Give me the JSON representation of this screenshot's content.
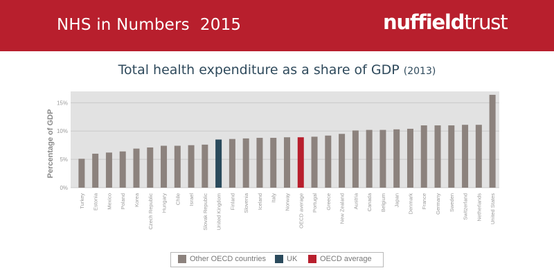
{
  "header": {
    "title": "NHS in Numbers",
    "year": "2015",
    "logo_part1": "nuffield",
    "logo_part2": "trust"
  },
  "colors": {
    "header_bg": "#b81f2d",
    "other": "#8c827d",
    "uk": "#2a4a5c",
    "oecd": "#b81f2d",
    "grid": "#c9c9c9",
    "plot_bg": "#e2e2e2"
  },
  "chart_data": {
    "type": "bar",
    "title": "Total health expenditure as a share of GDP",
    "title_year": "(2013)",
    "xlabel": "",
    "ylabel": "Percentage of GDP",
    "ylim": [
      0,
      17
    ],
    "yticks": [
      0,
      5,
      10,
      15
    ],
    "ytick_labels": [
      "0%",
      "5%",
      "10%",
      "15%"
    ],
    "categories": [
      "Turkey",
      "Estonia",
      "Mexico",
      "Poland",
      "Korea",
      "Czech Republic",
      "Hungary",
      "Chile",
      "Israel",
      "Slovak Republic",
      "United Kingdom",
      "Finland",
      "Slovenia",
      "Iceland",
      "Italy",
      "Norway",
      "OECD average",
      "Portugal",
      "Greece",
      "New Zealand",
      "Austria",
      "Canada",
      "Belgium",
      "Japan",
      "Denmark",
      "France",
      "Germany",
      "Sweden",
      "Switzerland",
      "Netherlands",
      "United States"
    ],
    "values": [
      5.1,
      6.0,
      6.2,
      6.4,
      6.9,
      7.1,
      7.4,
      7.4,
      7.5,
      7.6,
      8.5,
      8.6,
      8.7,
      8.8,
      8.8,
      8.9,
      8.9,
      9.0,
      9.2,
      9.5,
      10.1,
      10.2,
      10.2,
      10.3,
      10.4,
      11.0,
      11.0,
      11.0,
      11.1,
      11.1,
      16.4
    ],
    "groups": [
      "other",
      "other",
      "other",
      "other",
      "other",
      "other",
      "other",
      "other",
      "other",
      "other",
      "uk",
      "other",
      "other",
      "other",
      "other",
      "other",
      "oecd",
      "other",
      "other",
      "other",
      "other",
      "other",
      "other",
      "other",
      "other",
      "other",
      "other",
      "other",
      "other",
      "other",
      "other"
    ],
    "legend": [
      {
        "key": "other",
        "label": "Other OECD countries"
      },
      {
        "key": "uk",
        "label": "UK"
      },
      {
        "key": "oecd",
        "label": "OECD average"
      }
    ]
  }
}
